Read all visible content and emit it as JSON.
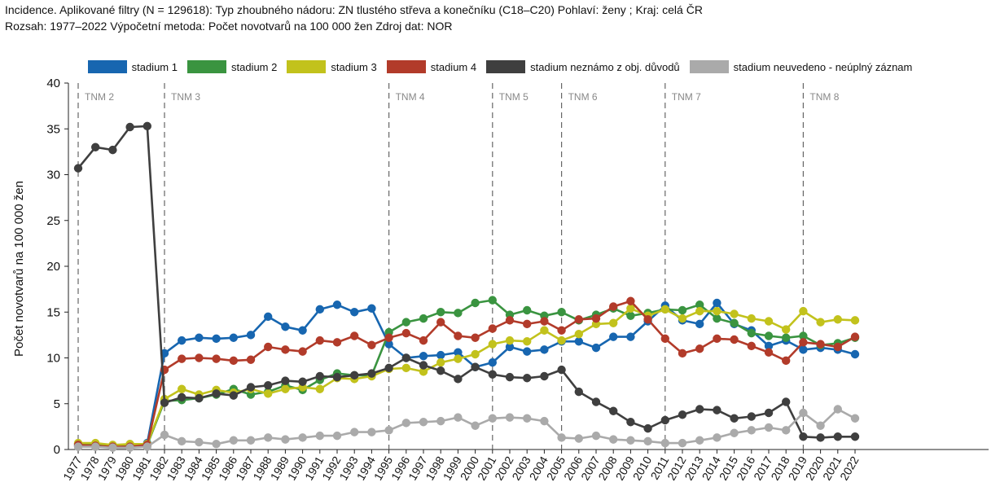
{
  "filters": {
    "line1": "Incidence. Aplikované filtry (N = 129618): Typ zhoubného nádoru: ZN tlustého střeva a konečníku (C18–C20) Pohlaví: ženy ; Kraj: celá ČR",
    "line2": "Rozsah: 1977–2022 Výpočetní metoda: Počet novotvarů na 100 000 žen Zdroj dat: NOR"
  },
  "chart_data": {
    "type": "line",
    "title": "",
    "xlabel": "",
    "ylabel": "Počet novotvarů na 100 000 žen",
    "ylim": [
      0,
      40
    ],
    "yticks": [
      0,
      5,
      10,
      15,
      20,
      25,
      30,
      35,
      40
    ],
    "grid": false,
    "legend_position": "top",
    "categories": [
      "1977",
      "1978",
      "1979",
      "1980",
      "1981",
      "1982",
      "1983",
      "1984",
      "1985",
      "1986",
      "1987",
      "1988",
      "1989",
      "1990",
      "1991",
      "1992",
      "1993",
      "1994",
      "1995",
      "1996",
      "1997",
      "1998",
      "1999",
      "2000",
      "2001",
      "2002",
      "2003",
      "2004",
      "2005",
      "2006",
      "2007",
      "2008",
      "2009",
      "2010",
      "2011",
      "2012",
      "2013",
      "2014",
      "2015",
      "2016",
      "2017",
      "2018",
      "2019",
      "2020",
      "2021",
      "2022"
    ],
    "tnm_markers": [
      {
        "label": "TNM 2",
        "year": "1977"
      },
      {
        "label": "TNM 3",
        "year": "1982"
      },
      {
        "label": "TNM 4",
        "year": "1995"
      },
      {
        "label": "TNM 5",
        "year": "2001"
      },
      {
        "label": "TNM 6",
        "year": "2005"
      },
      {
        "label": "TNM 7",
        "year": "2011"
      },
      {
        "label": "TNM 8",
        "year": "2019"
      }
    ],
    "series": [
      {
        "name": "stadium 1",
        "color": "#1766b0",
        "values": [
          0.4,
          0.4,
          0.3,
          0.3,
          0.7,
          10.5,
          11.9,
          12.2,
          12.1,
          12.2,
          12.5,
          14.5,
          13.4,
          13.0,
          15.3,
          15.8,
          15.0,
          15.4,
          11.5,
          10.0,
          10.2,
          10.3,
          10.6,
          9.0,
          9.5,
          11.2,
          10.7,
          10.9,
          11.8,
          11.8,
          11.1,
          12.3,
          12.3,
          14.0,
          15.7,
          14.1,
          13.7,
          16.0,
          13.7,
          13.0,
          11.3,
          11.9,
          10.9,
          11.1,
          10.9,
          10.4
        ]
      },
      {
        "name": "stadium 2",
        "color": "#3a9440",
        "values": [
          0.6,
          0.5,
          0.4,
          0.4,
          0.5,
          5.3,
          5.4,
          5.6,
          6.0,
          6.6,
          6.0,
          6.3,
          7.0,
          6.5,
          7.6,
          8.3,
          8.1,
          8.1,
          12.8,
          13.9,
          14.3,
          15.0,
          14.9,
          16.0,
          16.3,
          14.7,
          15.2,
          14.6,
          15.0,
          14.1,
          14.7,
          15.4,
          14.6,
          14.9,
          15.3,
          15.2,
          15.8,
          14.3,
          13.8,
          12.7,
          12.4,
          12.2,
          12.4,
          11.4,
          11.6,
          12.2
        ]
      },
      {
        "name": "stadium 3",
        "color": "#c2c21c",
        "values": [
          0.7,
          0.7,
          0.5,
          0.6,
          0.6,
          5.5,
          6.6,
          6.0,
          6.5,
          6.2,
          6.6,
          6.1,
          6.6,
          6.8,
          6.6,
          7.8,
          7.7,
          8.0,
          8.8,
          8.9,
          8.5,
          9.5,
          9.9,
          10.4,
          11.5,
          11.9,
          11.8,
          13.0,
          11.9,
          12.6,
          13.7,
          13.8,
          15.4,
          14.6,
          15.3,
          14.3,
          15.1,
          15.1,
          14.8,
          14.3,
          14.0,
          13.1,
          15.1,
          13.9,
          14.2,
          14.1
        ]
      },
      {
        "name": "stadium 4",
        "color": "#b23b2a",
        "values": [
          0.5,
          0.4,
          0.3,
          0.3,
          0.5,
          8.7,
          9.9,
          10.0,
          9.9,
          9.7,
          9.8,
          11.2,
          10.9,
          10.7,
          11.9,
          11.7,
          12.4,
          11.4,
          12.2,
          12.7,
          11.9,
          13.9,
          12.4,
          12.2,
          13.2,
          14.1,
          13.7,
          14.0,
          13.0,
          14.2,
          14.3,
          15.6,
          16.2,
          14.2,
          12.1,
          10.5,
          11.0,
          12.1,
          12.0,
          11.3,
          10.6,
          9.7,
          11.7,
          11.5,
          11.2,
          12.3
        ]
      },
      {
        "name": "stadium neznámo z obj. důvodů",
        "color": "#3f3f3f",
        "values": [
          30.7,
          33.0,
          32.7,
          35.2,
          35.3,
          5.1,
          5.7,
          5.6,
          6.1,
          5.9,
          6.8,
          7.0,
          7.5,
          7.4,
          8.0,
          7.9,
          8.1,
          8.3,
          8.9,
          10.0,
          9.2,
          8.6,
          7.7,
          9.0,
          8.2,
          7.9,
          7.8,
          8.0,
          8.7,
          6.3,
          5.2,
          4.2,
          3.0,
          2.3,
          3.2,
          3.8,
          4.4,
          4.3,
          3.4,
          3.6,
          4.0,
          5.2,
          1.4,
          1.3,
          1.4,
          1.4
        ]
      },
      {
        "name": "stadium neuvedeno - neúplný záznam",
        "color": "#aaaaaa",
        "values": [
          0.3,
          0.3,
          0.2,
          0.2,
          0.3,
          1.6,
          0.9,
          0.8,
          0.6,
          1.0,
          1.0,
          1.3,
          1.1,
          1.3,
          1.5,
          1.5,
          1.9,
          1.9,
          2.1,
          2.9,
          3.0,
          3.1,
          3.5,
          2.6,
          3.4,
          3.5,
          3.4,
          3.1,
          1.3,
          1.2,
          1.5,
          1.1,
          1.0,
          0.9,
          0.7,
          0.7,
          1.0,
          1.3,
          1.8,
          2.1,
          2.4,
          2.1,
          4.0,
          2.6,
          4.4,
          3.4
        ]
      }
    ]
  }
}
